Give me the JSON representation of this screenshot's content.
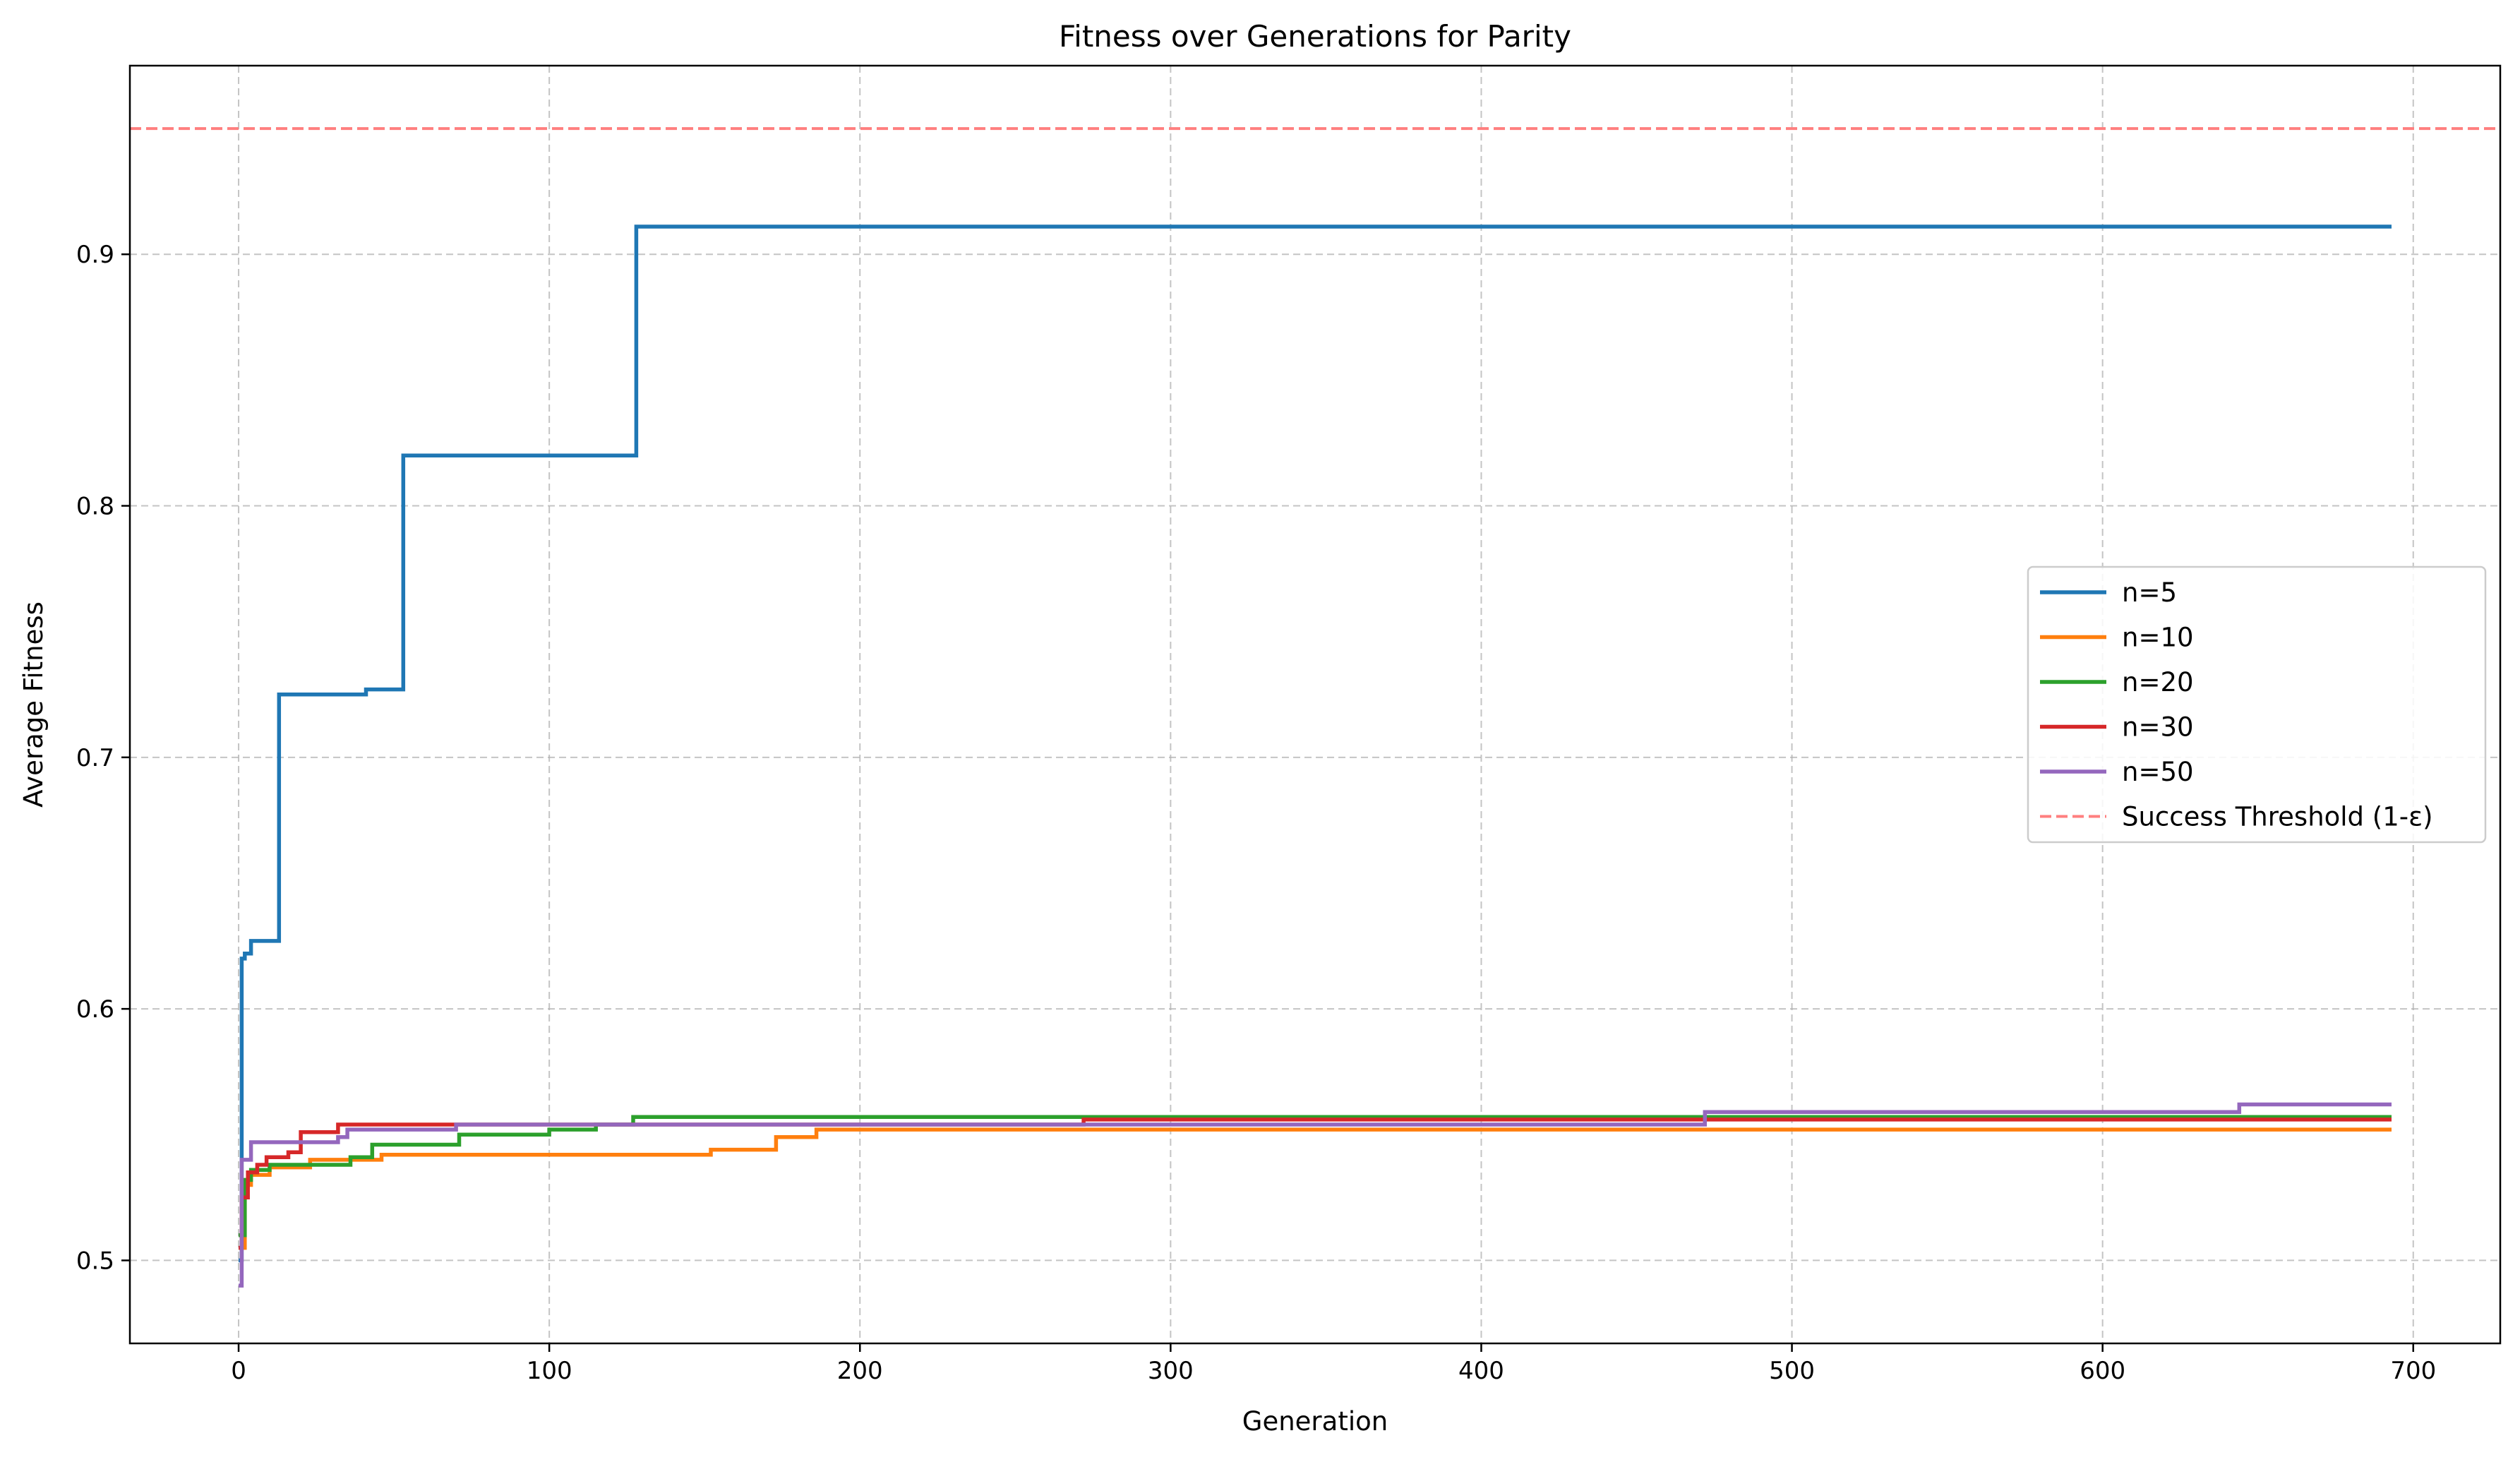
{
  "chart_data": {
    "type": "line",
    "title": "Fitness over Generations for Parity",
    "xlabel": "Generation",
    "ylabel": "Average Fitness",
    "xlim": [
      -35,
      728
    ],
    "ylim": [
      0.467,
      0.975
    ],
    "xticks": [
      0,
      100,
      200,
      300,
      400,
      500,
      600,
      700
    ],
    "xtick_labels": [
      "0",
      "100",
      "200",
      "300",
      "400",
      "500",
      "600",
      "700"
    ],
    "yticks": [
      0.5,
      0.6,
      0.7,
      0.8,
      0.9
    ],
    "ytick_labels": [
      "0.5",
      "0.6",
      "0.7",
      "0.8",
      "0.9"
    ],
    "grid": true,
    "grid_style": "dashed",
    "legend_position": "center-right",
    "series": [
      {
        "name": "n=5",
        "color": "#1f77b4",
        "step": true,
        "points": [
          [
            0,
            0.5
          ],
          [
            1,
            0.62
          ],
          [
            2,
            0.622
          ],
          [
            4,
            0.627
          ],
          [
            12,
            0.627
          ],
          [
            13,
            0.725
          ],
          [
            40,
            0.725
          ],
          [
            41,
            0.727
          ],
          [
            52,
            0.727
          ],
          [
            53,
            0.82
          ],
          [
            127,
            0.82
          ],
          [
            128,
            0.911
          ],
          [
            693,
            0.911
          ]
        ]
      },
      {
        "name": "n=10",
        "color": "#ff7f0e",
        "step": true,
        "points": [
          [
            0,
            0.505
          ],
          [
            2,
            0.53
          ],
          [
            4,
            0.534
          ],
          [
            10,
            0.537
          ],
          [
            23,
            0.54
          ],
          [
            46,
            0.542
          ],
          [
            152,
            0.544
          ],
          [
            173,
            0.549
          ],
          [
            186,
            0.552
          ],
          [
            693,
            0.552
          ]
        ]
      },
      {
        "name": "n=20",
        "color": "#2ca02c",
        "step": true,
        "points": [
          [
            0,
            0.51
          ],
          [
            2,
            0.532
          ],
          [
            4,
            0.536
          ],
          [
            10,
            0.538
          ],
          [
            36,
            0.541
          ],
          [
            43,
            0.546
          ],
          [
            71,
            0.55
          ],
          [
            100,
            0.552
          ],
          [
            115,
            0.554
          ],
          [
            127,
            0.557
          ],
          [
            693,
            0.557
          ]
        ]
      },
      {
        "name": "n=30",
        "color": "#d62728",
        "step": true,
        "points": [
          [
            0,
            0.505
          ],
          [
            1,
            0.525
          ],
          [
            3,
            0.535
          ],
          [
            6,
            0.538
          ],
          [
            9,
            0.541
          ],
          [
            16,
            0.543
          ],
          [
            20,
            0.551
          ],
          [
            32,
            0.554
          ],
          [
            272,
            0.556
          ],
          [
            693,
            0.556
          ]
        ]
      },
      {
        "name": "n=50",
        "color": "#9467bd",
        "step": true,
        "points": [
          [
            0,
            0.49
          ],
          [
            1,
            0.54
          ],
          [
            4,
            0.547
          ],
          [
            32,
            0.549
          ],
          [
            35,
            0.552
          ],
          [
            70,
            0.554
          ],
          [
            472,
            0.559
          ],
          [
            644,
            0.562
          ],
          [
            693,
            0.562
          ]
        ]
      }
    ],
    "threshold": {
      "name": "Success Threshold (1-ε)",
      "value": 0.95,
      "color": "#ff7f7f",
      "style": "dashed"
    }
  }
}
